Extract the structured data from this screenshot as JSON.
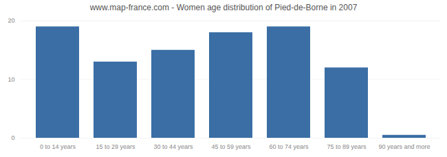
{
  "chart_data": {
    "type": "bar",
    "title": "www.map-france.com - Women age distribution of Pied-de-Borne in 2007",
    "categories": [
      "0 to 14 years",
      "15 to 29 years",
      "30 to 44 years",
      "45 to 59 years",
      "60 to 74 years",
      "75 to 89 years",
      "90 years and more"
    ],
    "values": [
      19,
      13,
      15,
      18,
      19,
      12,
      0.5
    ],
    "color": "#3a6ea5",
    "ylim": [
      0,
      20
    ],
    "yticks": [
      0,
      10,
      20
    ],
    "grid": true
  }
}
